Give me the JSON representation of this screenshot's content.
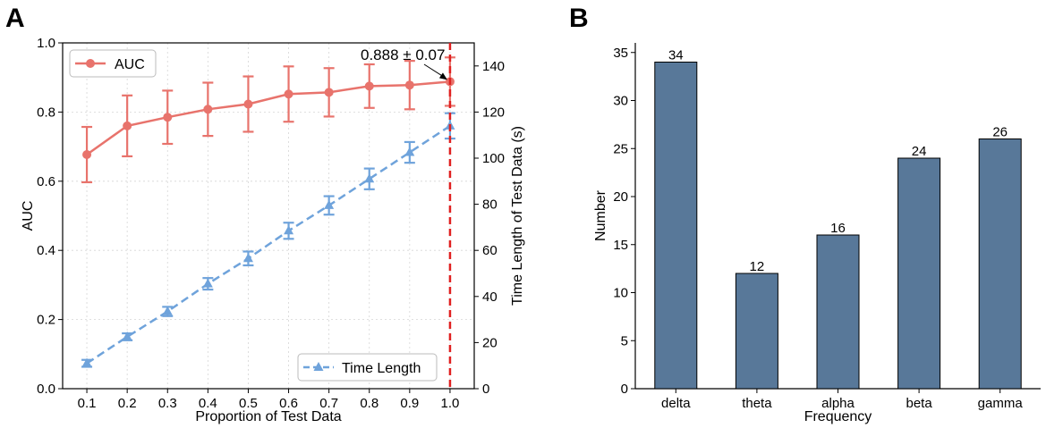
{
  "panel_a_label": "A",
  "panel_b_label": "B",
  "chart_data": [
    {
      "id": "A",
      "type": "line",
      "title": "",
      "xlabel": "Proportion of Test Data",
      "ylabel": "AUC",
      "ylabel_right": "Time Length of Test Data (s)",
      "x": [
        0.1,
        0.2,
        0.3,
        0.4,
        0.5,
        0.6,
        0.7,
        0.8,
        0.9,
        1.0
      ],
      "x_tick_labels": [
        "0.1",
        "0.2",
        "0.3",
        "0.4",
        "0.5",
        "0.6",
        "0.7",
        "0.8",
        "0.9",
        "1.0"
      ],
      "xlim": [
        0.04,
        1.06
      ],
      "ylim": [
        0.0,
        1.0
      ],
      "ylim_right": [
        0,
        150
      ],
      "y_ticks": [
        "0.0",
        "0.2",
        "0.4",
        "0.6",
        "0.8",
        "1.0"
      ],
      "y_ticks_right": [
        "0",
        "20",
        "40",
        "60",
        "80",
        "100",
        "120",
        "140"
      ],
      "grid": true,
      "series": [
        {
          "name": "AUC",
          "axis": "left",
          "color": "#e8736c",
          "marker": "circle",
          "linestyle": "solid",
          "values": [
            0.677,
            0.76,
            0.785,
            0.808,
            0.823,
            0.852,
            0.857,
            0.875,
            0.878,
            0.888
          ],
          "errors": [
            0.08,
            0.088,
            0.077,
            0.077,
            0.08,
            0.08,
            0.07,
            0.063,
            0.07,
            0.07
          ]
        },
        {
          "name": "Time Length",
          "axis": "right",
          "color": "#6fa3db",
          "marker": "triangle",
          "linestyle": "dashed",
          "values": [
            11.0,
            22.5,
            33.5,
            45.5,
            56.5,
            68.5,
            79.5,
            91.0,
            102.5,
            114.0
          ],
          "errors": [
            1.5,
            1.5,
            2.0,
            2.5,
            3.0,
            3.5,
            4.0,
            4.5,
            4.5,
            5.5
          ]
        }
      ],
      "legend": [
        {
          "label": "AUC",
          "position": "top-left"
        },
        {
          "label": "Time Length",
          "position": "bottom-right"
        }
      ],
      "vline": {
        "x": 1.0,
        "color": "#e02020",
        "linestyle": "dashed"
      },
      "annotation": {
        "text": "0.888 ± 0.07",
        "x": 1.0,
        "y": 0.888
      }
    },
    {
      "id": "B",
      "type": "bar",
      "title": "",
      "xlabel": "Frequency",
      "ylabel": "Number",
      "categories": [
        "delta",
        "theta",
        "alpha",
        "beta",
        "gamma"
      ],
      "values": [
        34,
        12,
        16,
        24,
        26
      ],
      "value_labels": [
        "34",
        "12",
        "16",
        "24",
        "26"
      ],
      "ylim": [
        0,
        36
      ],
      "y_ticks": [
        "0",
        "5",
        "10",
        "15",
        "20",
        "25",
        "30",
        "35"
      ],
      "color": "#587899",
      "grid": false
    }
  ]
}
